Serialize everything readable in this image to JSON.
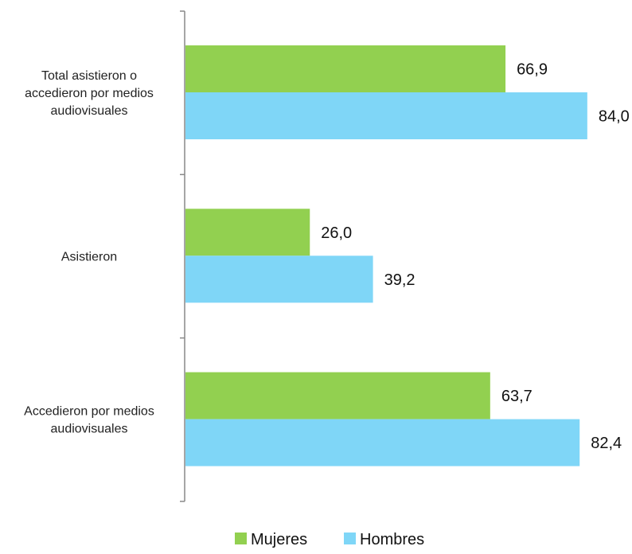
{
  "chart_data": {
    "type": "bar",
    "orientation": "horizontal",
    "categories": [
      [
        "Total asistieron o",
        "accedieron por medios",
        "audiovisuales"
      ],
      [
        "Asistieron"
      ],
      [
        "Accedieron por medios",
        "audiovisuales"
      ]
    ],
    "series": [
      {
        "name": "Mujeres",
        "color": "#92D050",
        "values": [
          66.9,
          26.0,
          63.7
        ],
        "labels": [
          "66,9",
          "26,0",
          "63,7"
        ]
      },
      {
        "name": "Hombres",
        "color": "#7FD6F7",
        "values": [
          84.0,
          39.2,
          82.4
        ],
        "labels": [
          "84,0",
          "39,2",
          "82,4"
        ]
      }
    ],
    "xlim": [
      0,
      90
    ],
    "grid": false,
    "legend_position": "bottom"
  }
}
